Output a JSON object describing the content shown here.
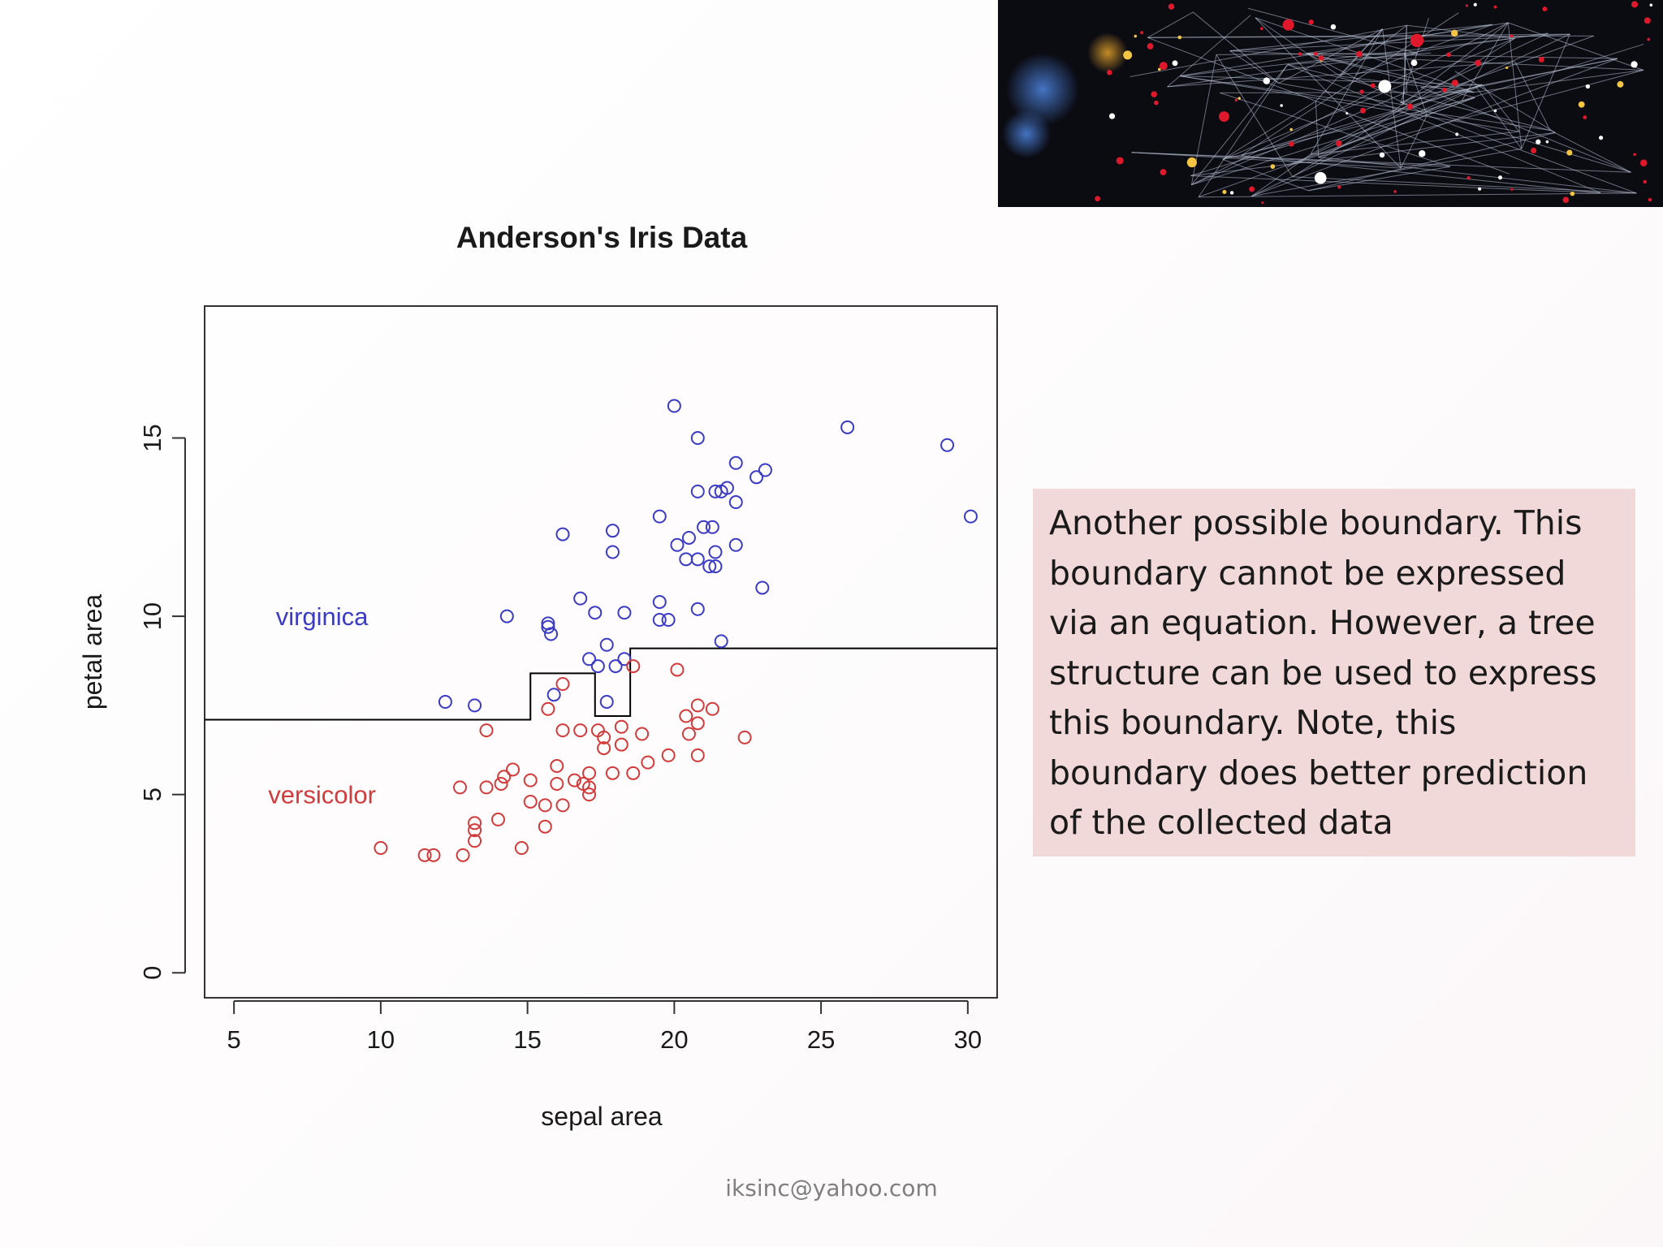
{
  "note": {
    "text": "Another possible boundary. This boundary cannot be expressed via an equation. However, a tree structure can be used to express this boundary. Note, this boundary does better prediction of the collected data"
  },
  "footer": {
    "email": "iksinc@yahoo.com"
  },
  "colors": {
    "virginica": "#3b3bc4",
    "versicolor": "#d23b3b",
    "note_bg": "#f2d9d9",
    "boundary": "#000000"
  },
  "hero_image": {
    "description_icon": "network-graph-image"
  },
  "chart_data": {
    "type": "scatter",
    "title": "Anderson's Iris Data",
    "xlabel": "sepal area",
    "ylabel": "petal area",
    "xlim": [
      4,
      31
    ],
    "ylim": [
      -0.7,
      18.7
    ],
    "xticks": [
      5,
      10,
      15,
      20,
      25,
      30
    ],
    "yticks": [
      0,
      5,
      10,
      15
    ],
    "grid": false,
    "annotations": [
      {
        "text": "virginica",
        "x": 8.0,
        "y": 10.0,
        "series": "virginica"
      },
      {
        "text": "versicolor",
        "x": 8.0,
        "y": 5.0,
        "series": "versicolor"
      }
    ],
    "boundary": {
      "x": [
        4.0,
        15.1,
        15.1,
        17.3,
        17.3,
        18.5,
        18.5,
        31.0
      ],
      "y": [
        7.1,
        7.1,
        8.4,
        8.4,
        7.2,
        7.2,
        9.1,
        9.1
      ]
    },
    "series": [
      {
        "name": "virginica",
        "points": [
          [
            20.0,
            15.9
          ],
          [
            20.8,
            15.0
          ],
          [
            25.9,
            15.3
          ],
          [
            29.3,
            14.8
          ],
          [
            30.1,
            12.8
          ],
          [
            22.1,
            14.3
          ],
          [
            23.1,
            14.1
          ],
          [
            22.8,
            13.9
          ],
          [
            20.8,
            13.5
          ],
          [
            21.4,
            13.5
          ],
          [
            21.6,
            13.5
          ],
          [
            21.8,
            13.6
          ],
          [
            22.1,
            13.2
          ],
          [
            19.5,
            12.8
          ],
          [
            17.9,
            12.4
          ],
          [
            21.0,
            12.5
          ],
          [
            21.3,
            12.5
          ],
          [
            16.2,
            12.3
          ],
          [
            20.5,
            12.2
          ],
          [
            20.1,
            12.0
          ],
          [
            22.1,
            12.0
          ],
          [
            17.9,
            11.8
          ],
          [
            21.4,
            11.8
          ],
          [
            20.4,
            11.6
          ],
          [
            20.8,
            11.6
          ],
          [
            21.2,
            11.4
          ],
          [
            21.4,
            11.4
          ],
          [
            23.0,
            10.8
          ],
          [
            19.5,
            10.4
          ],
          [
            16.8,
            10.5
          ],
          [
            17.3,
            10.1
          ],
          [
            18.3,
            10.1
          ],
          [
            20.8,
            10.2
          ],
          [
            19.5,
            9.9
          ],
          [
            19.8,
            9.9
          ],
          [
            14.3,
            10.0
          ],
          [
            15.7,
            9.8
          ],
          [
            15.7,
            9.7
          ],
          [
            15.8,
            9.5
          ],
          [
            21.6,
            9.3
          ],
          [
            17.7,
            9.2
          ],
          [
            17.1,
            8.8
          ],
          [
            18.3,
            8.8
          ],
          [
            17.4,
            8.6
          ],
          [
            18.0,
            8.6
          ],
          [
            15.9,
            7.8
          ],
          [
            12.2,
            7.6
          ],
          [
            13.2,
            7.5
          ],
          [
            17.7,
            7.6
          ]
        ]
      },
      {
        "name": "versicolor",
        "points": [
          [
            20.1,
            8.5
          ],
          [
            18.6,
            8.6
          ],
          [
            16.2,
            8.1
          ],
          [
            15.7,
            7.4
          ],
          [
            21.3,
            7.4
          ],
          [
            20.8,
            7.5
          ],
          [
            20.4,
            7.2
          ],
          [
            20.8,
            7.0
          ],
          [
            18.2,
            6.9
          ],
          [
            13.6,
            6.8
          ],
          [
            16.2,
            6.8
          ],
          [
            16.8,
            6.8
          ],
          [
            17.4,
            6.8
          ],
          [
            18.9,
            6.7
          ],
          [
            20.5,
            6.7
          ],
          [
            17.6,
            6.6
          ],
          [
            22.4,
            6.6
          ],
          [
            18.2,
            6.4
          ],
          [
            17.6,
            6.3
          ],
          [
            19.8,
            6.1
          ],
          [
            20.8,
            6.1
          ],
          [
            19.1,
            5.9
          ],
          [
            14.5,
            5.7
          ],
          [
            16.0,
            5.8
          ],
          [
            17.1,
            5.6
          ],
          [
            17.9,
            5.6
          ],
          [
            18.6,
            5.6
          ],
          [
            14.2,
            5.5
          ],
          [
            15.1,
            5.4
          ],
          [
            16.6,
            5.4
          ],
          [
            14.1,
            5.3
          ],
          [
            16.0,
            5.3
          ],
          [
            16.9,
            5.3
          ],
          [
            17.1,
            5.2
          ],
          [
            12.7,
            5.2
          ],
          [
            13.6,
            5.2
          ],
          [
            17.1,
            5.0
          ],
          [
            15.1,
            4.8
          ],
          [
            15.6,
            4.7
          ],
          [
            16.2,
            4.7
          ],
          [
            14.0,
            4.3
          ],
          [
            13.2,
            4.2
          ],
          [
            13.2,
            4.0
          ],
          [
            15.6,
            4.1
          ],
          [
            13.2,
            3.7
          ],
          [
            10.0,
            3.5
          ],
          [
            14.8,
            3.5
          ],
          [
            11.5,
            3.3
          ],
          [
            11.8,
            3.3
          ],
          [
            12.8,
            3.3
          ]
        ]
      }
    ]
  }
}
